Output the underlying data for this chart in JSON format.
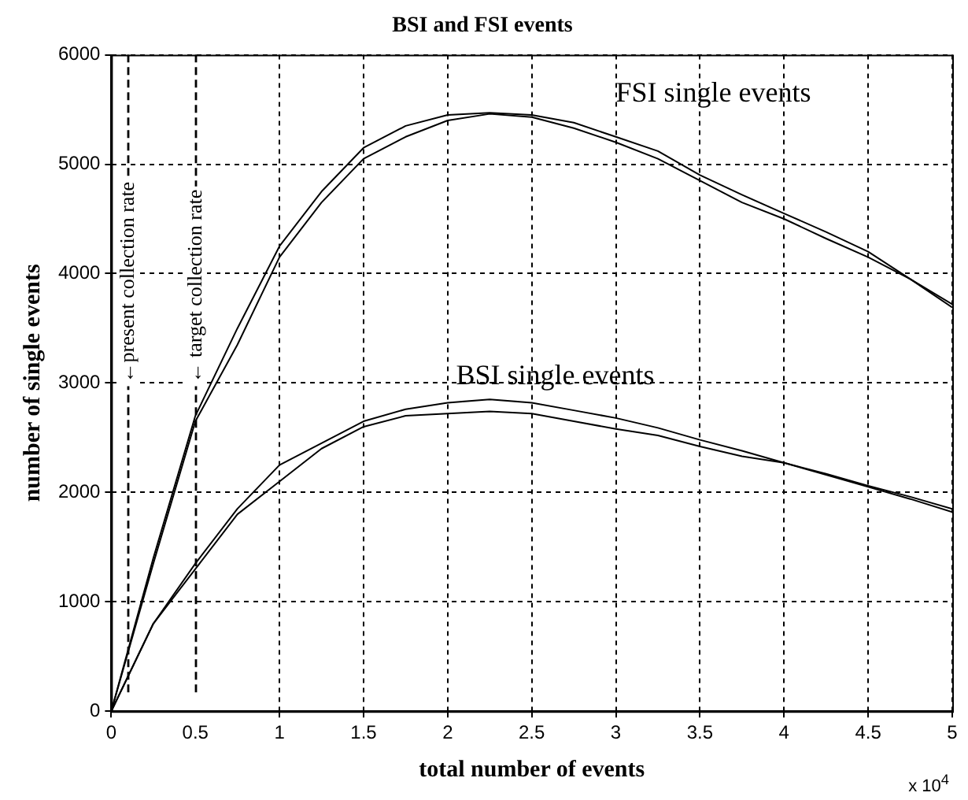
{
  "chart_data": {
    "type": "line",
    "title": "BSI and FSI events",
    "xlabel": "total number of events",
    "ylabel": "number of single events",
    "x": [
      0,
      0.25,
      0.5,
      0.75,
      1,
      1.25,
      1.5,
      1.75,
      2,
      2.25,
      2.5,
      2.75,
      3,
      3.25,
      3.5,
      3.75,
      4,
      4.25,
      4.5,
      4.75,
      5
    ],
    "series": [
      {
        "color": "#000000",
        "values": [
          0,
          1400,
          2700,
          3500,
          4250,
          4750,
          5150,
          5350,
          5450,
          5470,
          5450,
          5380,
          5250,
          5120,
          4900,
          4720,
          4550,
          4380,
          4200,
          3950,
          3720
        ]
      },
      {
        "color": "#000000",
        "values": [
          0,
          1350,
          2650,
          3350,
          4150,
          4650,
          5050,
          5250,
          5400,
          5460,
          5430,
          5330,
          5200,
          5050,
          4850,
          4650,
          4500,
          4320,
          4150,
          3950,
          3690
        ]
      },
      {
        "color": "#000000",
        "values": [
          0,
          800,
          1350,
          1850,
          2250,
          2450,
          2650,
          2760,
          2820,
          2850,
          2820,
          2750,
          2680,
          2590,
          2480,
          2380,
          2270,
          2170,
          2060,
          1960,
          1850
        ]
      },
      {
        "color": "#000000",
        "values": [
          0,
          800,
          1300,
          1800,
          2100,
          2400,
          2600,
          2700,
          2720,
          2740,
          2720,
          2650,
          2580,
          2520,
          2420,
          2330,
          2270,
          2160,
          2050,
          1940,
          1820
        ]
      }
    ],
    "xlim": [
      0,
      5
    ],
    "xticks": [
      0,
      0.5,
      1,
      1.5,
      2,
      2.5,
      3,
      3.5,
      4,
      4.5,
      5
    ],
    "ylim": [
      0,
      6000
    ],
    "yticks": [
      0,
      1000,
      2000,
      3000,
      4000,
      5000,
      6000
    ],
    "grid": true,
    "legend": false,
    "marker": "none",
    "line_style": "solid",
    "ref_lines": [
      {
        "axis": "x",
        "value": 0.1,
        "label": "←present collection rate",
        "line_style": "dashed"
      },
      {
        "axis": "x",
        "value": 0.5,
        "label": "← target collection rate",
        "line_style": "dashed"
      }
    ],
    "annotations": [
      "FSI single events",
      "BSI single events",
      "x 10$^{4}$"
    ]
  }
}
